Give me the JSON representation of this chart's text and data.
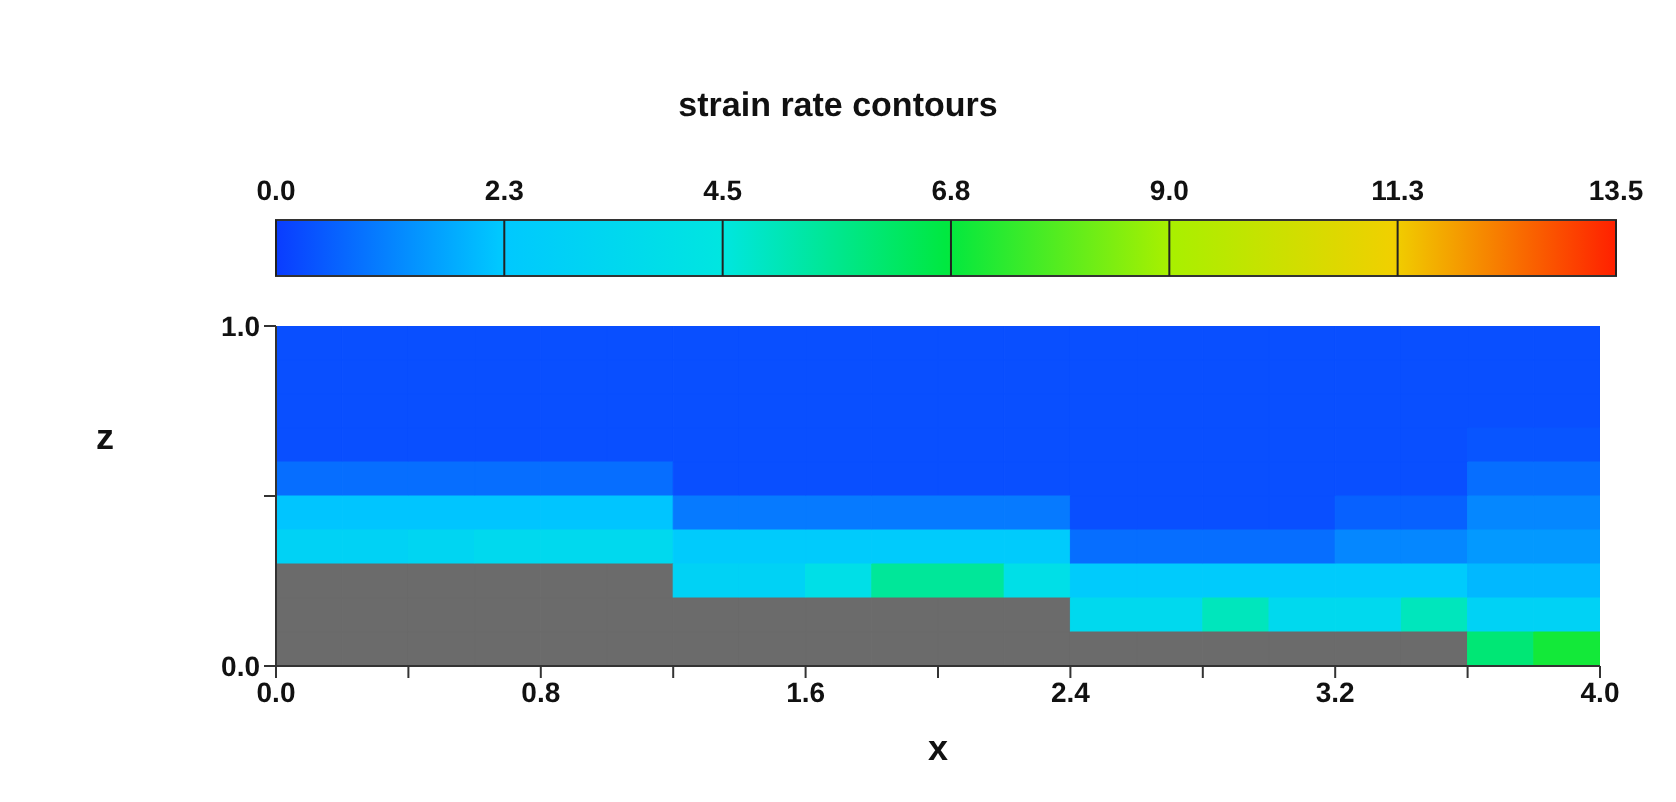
{
  "chart_data": {
    "type": "heatmap",
    "title": "strain rate contours",
    "xlabel": "x",
    "ylabel": "z",
    "xlim": [
      0,
      4
    ],
    "xticks": [
      {
        "value": 0,
        "label": "0.0"
      },
      {
        "value": 0.4,
        "label": null
      },
      {
        "value": 0.8,
        "label": "0.8"
      },
      {
        "value": 1.2,
        "label": null
      },
      {
        "value": 1.6,
        "label": "1.6"
      },
      {
        "value": 2.0,
        "label": null
      },
      {
        "value": 2.4,
        "label": "2.4"
      },
      {
        "value": 2.8,
        "label": null
      },
      {
        "value": 3.2,
        "label": "3.2"
      },
      {
        "value": 3.6,
        "label": null
      },
      {
        "value": 4.0,
        "label": "4.0"
      }
    ],
    "ylim": [
      0,
      1
    ],
    "yticks": [
      {
        "value": 0,
        "label": "0.0"
      },
      {
        "value": 0.5,
        "label": null
      },
      {
        "value": 1,
        "label": "1.0"
      }
    ],
    "clim": [
      0,
      13.5
    ],
    "cticks": [
      {
        "value": 0,
        "label": "0.0"
      },
      2.3,
      4.5,
      6.8,
      {
        "value": 9,
        "label": "9.0"
      },
      11.3,
      13.5
    ],
    "cells": [
      [
        0.3,
        0.3,
        0.3,
        0.3,
        0.3,
        0.3,
        0.3,
        0.3,
        0.3,
        0.3,
        0.3,
        0.3,
        0.3,
        0.3,
        0.3,
        0.3,
        0.3,
        0.3,
        0.3,
        0.3
      ],
      [
        0.3,
        0.3,
        0.3,
        0.3,
        0.3,
        0.3,
        0.3,
        0.3,
        0.3,
        0.3,
        0.3,
        0.3,
        0.3,
        0.3,
        0.3,
        0.3,
        0.3,
        0.3,
        0.3,
        0.3
      ],
      [
        0.3,
        0.3,
        0.3,
        0.3,
        0.3,
        0.3,
        0.3,
        0.3,
        0.3,
        0.3,
        0.3,
        0.3,
        0.3,
        0.3,
        0.3,
        0.3,
        0.3,
        0.3,
        0.3,
        0.3
      ],
      [
        0.3,
        0.3,
        0.3,
        0.3,
        0.3,
        0.3,
        0.3,
        0.3,
        0.3,
        0.3,
        0.3,
        0.3,
        0.3,
        0.3,
        0.3,
        0.3,
        0.3,
        0.3,
        0.4,
        0.4
      ],
      [
        0.8,
        0.8,
        0.8,
        0.8,
        0.8,
        0.8,
        0.3,
        0.3,
        0.3,
        0.3,
        0.3,
        0.3,
        0.3,
        0.3,
        0.3,
        0.3,
        0.3,
        0.3,
        0.8,
        0.8
      ],
      [
        2.2,
        2.2,
        2.2,
        2.2,
        2.2,
        2.2,
        1.0,
        1.0,
        1.0,
        1.0,
        1.0,
        1.0,
        0.3,
        0.3,
        0.3,
        0.3,
        0.6,
        0.6,
        1.2,
        1.2
      ],
      [
        3,
        3,
        3.2,
        3.5,
        3.5,
        3.5,
        2.5,
        2.5,
        2.5,
        2.5,
        2.5,
        2.5,
        0.8,
        0.8,
        0.8,
        0.8,
        1.2,
        1.2,
        1.5,
        1.5
      ],
      [
        null,
        null,
        null,
        null,
        null,
        null,
        3,
        3,
        4,
        5.5,
        5.5,
        4,
        2.5,
        2.5,
        2.5,
        2.5,
        2.5,
        2.5,
        2,
        2
      ],
      [
        null,
        null,
        null,
        null,
        null,
        null,
        null,
        null,
        null,
        null,
        null,
        null,
        3.5,
        3.5,
        5,
        3.5,
        3.5,
        5,
        3,
        3
      ],
      [
        null,
        null,
        null,
        null,
        null,
        null,
        null,
        null,
        null,
        null,
        null,
        null,
        null,
        null,
        null,
        null,
        null,
        null,
        6,
        7
      ]
    ]
  }
}
